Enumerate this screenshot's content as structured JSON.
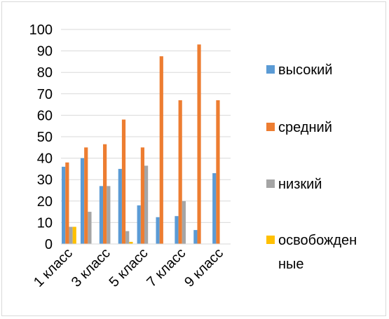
{
  "chart_data": {
    "type": "bar",
    "categories": [
      "1 класс",
      "2 класс",
      "3 класс",
      "4 класс",
      "5 класс",
      "6 класс",
      "7 класс",
      "8 класс",
      "9 класс"
    ],
    "visible_category_labels": [
      "1 класс",
      "3 класс",
      "5 класс",
      "7 класс",
      "9 класс"
    ],
    "series": [
      {
        "name": "высокий",
        "color": "#5B9BD5",
        "values": [
          36,
          40,
          27,
          35,
          18,
          12.5,
          13,
          6.5,
          33
        ]
      },
      {
        "name": "средний",
        "color": "#ED7D31",
        "values": [
          38,
          45,
          46.5,
          58,
          45,
          87.5,
          67,
          93,
          67
        ]
      },
      {
        "name": "низкий",
        "color": "#A5A5A5",
        "values": [
          8,
          15,
          27,
          6,
          36.5,
          0,
          20,
          0,
          0
        ]
      },
      {
        "name": "освобожденные",
        "legend_lines": [
          "освобожден",
          "ные"
        ],
        "color": "#FFC000",
        "values": [
          8,
          0,
          0,
          1,
          0,
          0,
          0,
          0,
          0
        ]
      }
    ],
    "yticks": [
      "0",
      "10",
      "20",
      "30",
      "40",
      "50",
      "60",
      "70",
      "80",
      "90",
      "100"
    ],
    "ylim": [
      0,
      100
    ],
    "grid": true,
    "legend_position": "right"
  }
}
